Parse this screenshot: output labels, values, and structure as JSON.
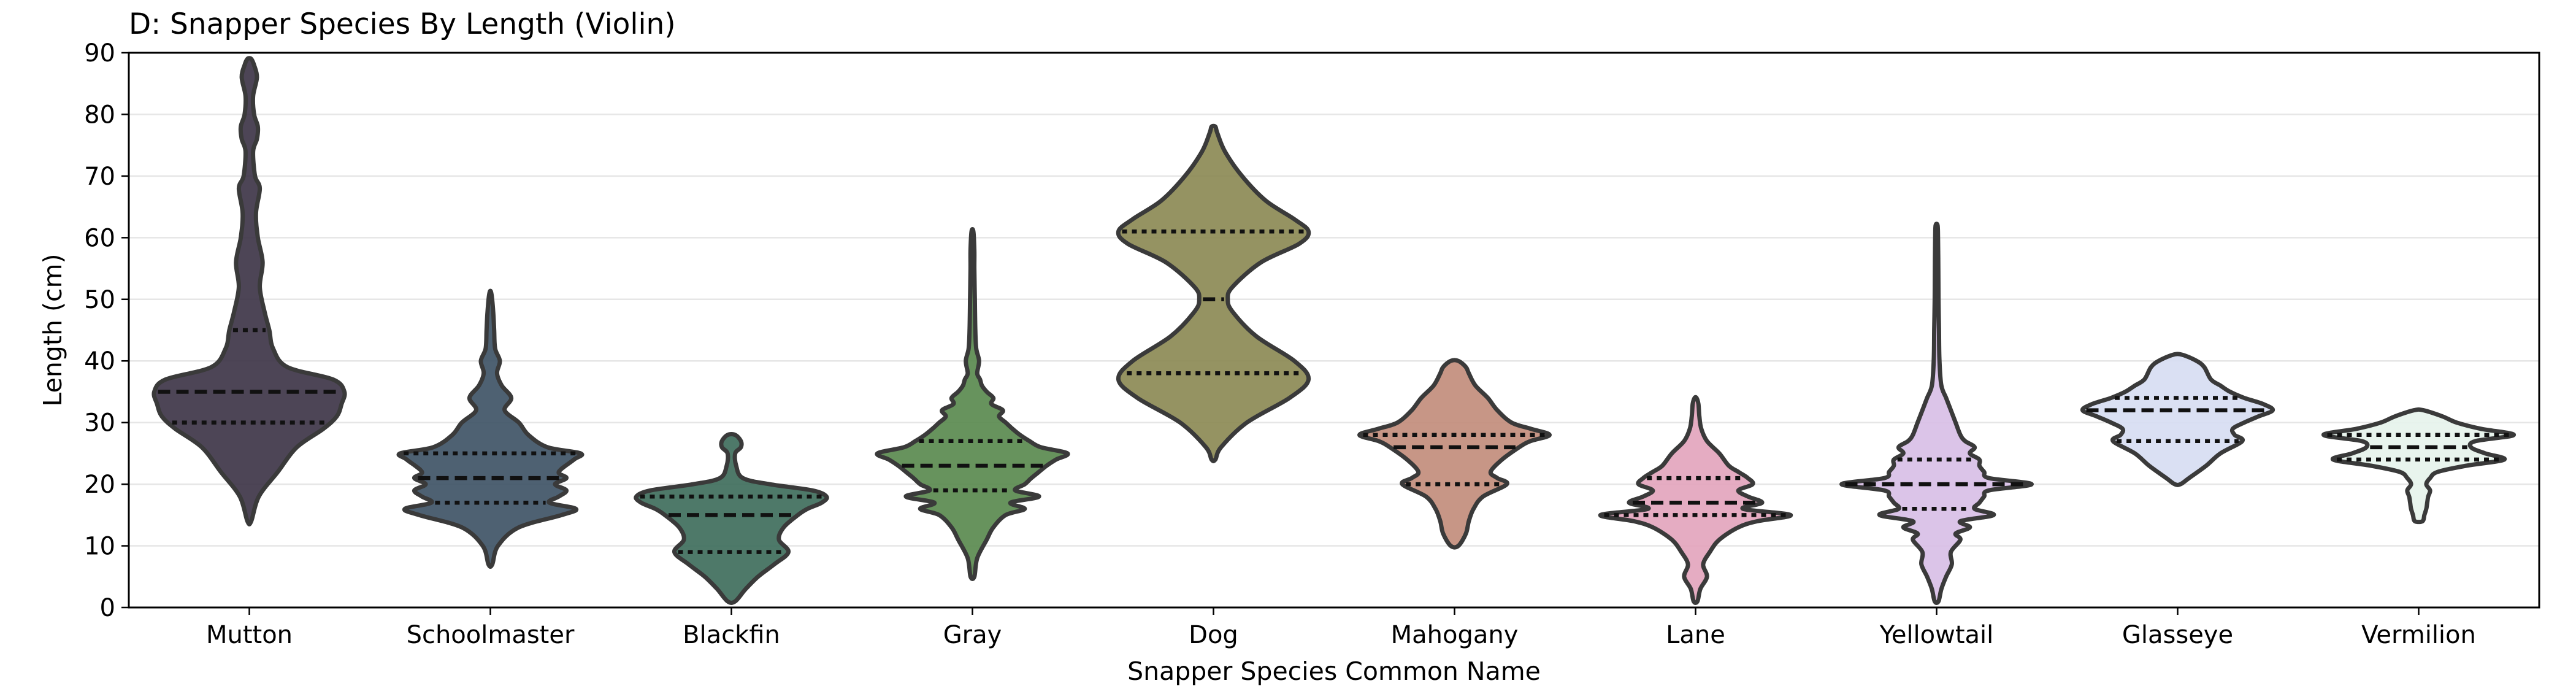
{
  "chart_data": {
    "type": "violin",
    "title": "D: Snapper Species By Length (Violin)",
    "xlabel": "Snapper Species Common Name",
    "ylabel": "Length (cm)",
    "ylim": [
      0,
      90
    ],
    "yticks": [
      0,
      10,
      20,
      30,
      40,
      50,
      60,
      70,
      80,
      90
    ],
    "grid": "horizontal",
    "inner": "quartile",
    "categories": [
      "Mutton",
      "Schoolmaster",
      "Blackfin",
      "Gray",
      "Dog",
      "Mahogany",
      "Lane",
      "Yellowtail",
      "Glasseye",
      "Vermilion"
    ],
    "colors": [
      "#3e3548",
      "#3f5466",
      "#3f6e5c",
      "#5a8a4f",
      "#8c8a55",
      "#c28d7c",
      "#e3a5bd",
      "#d8bfe6",
      "#d7ddf2",
      "#e6f3ec"
    ],
    "violins": [
      {
        "name": "Mutton",
        "min": 14,
        "max": 89,
        "q1": 30,
        "median": 35,
        "q3": 45,
        "profile": [
          [
            14,
            0.02
          ],
          [
            18,
            0.1
          ],
          [
            22,
            0.3
          ],
          [
            26,
            0.5
          ],
          [
            29,
            0.78
          ],
          [
            31,
            0.92
          ],
          [
            33,
            0.97
          ],
          [
            35,
            1.0
          ],
          [
            37,
            0.88
          ],
          [
            39,
            0.4
          ],
          [
            42,
            0.25
          ],
          [
            45,
            0.21
          ],
          [
            48,
            0.16
          ],
          [
            52,
            0.11
          ],
          [
            56,
            0.14
          ],
          [
            60,
            0.09
          ],
          [
            64,
            0.07
          ],
          [
            68,
            0.11
          ],
          [
            70,
            0.06
          ],
          [
            74,
            0.04
          ],
          [
            76,
            0.08
          ],
          [
            78,
            0.09
          ],
          [
            80,
            0.05
          ],
          [
            83,
            0.04
          ],
          [
            86,
            0.08
          ],
          [
            88,
            0.05
          ],
          [
            89,
            0.02
          ]
        ]
      },
      {
        "name": "Schoolmaster",
        "min": 7,
        "max": 51,
        "q1": 17,
        "median": 21,
        "q3": 25,
        "profile": [
          [
            7,
            0.02
          ],
          [
            10,
            0.08
          ],
          [
            13,
            0.3
          ],
          [
            15,
            0.75
          ],
          [
            16,
            0.9
          ],
          [
            17,
            0.62
          ],
          [
            18,
            0.72
          ],
          [
            19,
            0.8
          ],
          [
            20,
            0.68
          ],
          [
            21,
            0.8
          ],
          [
            22,
            0.72
          ],
          [
            24,
            0.88
          ],
          [
            25,
            0.95
          ],
          [
            26,
            0.6
          ],
          [
            28,
            0.4
          ],
          [
            30,
            0.3
          ],
          [
            32,
            0.15
          ],
          [
            34,
            0.22
          ],
          [
            36,
            0.12
          ],
          [
            38,
            0.07
          ],
          [
            40,
            0.1
          ],
          [
            42,
            0.05
          ],
          [
            45,
            0.04
          ],
          [
            48,
            0.03
          ],
          [
            51,
            0.01
          ]
        ]
      },
      {
        "name": "Blackfin",
        "min": 1,
        "max": 28,
        "q1": 9,
        "median": 15,
        "q3": 18,
        "profile": [
          [
            1,
            0.04
          ],
          [
            3,
            0.15
          ],
          [
            5,
            0.28
          ],
          [
            7,
            0.45
          ],
          [
            9,
            0.6
          ],
          [
            11,
            0.5
          ],
          [
            13,
            0.55
          ],
          [
            15,
            0.7
          ],
          [
            16,
            0.8
          ],
          [
            17,
            0.95
          ],
          [
            18,
            1.0
          ],
          [
            19,
            0.85
          ],
          [
            20,
            0.4
          ],
          [
            21,
            0.12
          ],
          [
            23,
            0.05
          ],
          [
            25,
            0.04
          ],
          [
            26,
            0.1
          ],
          [
            27,
            0.1
          ],
          [
            28,
            0.04
          ]
        ]
      },
      {
        "name": "Gray",
        "min": 5,
        "max": 61,
        "q1": 19,
        "median": 23,
        "q3": 27,
        "profile": [
          [
            5,
            0.02
          ],
          [
            8,
            0.05
          ],
          [
            11,
            0.15
          ],
          [
            13,
            0.22
          ],
          [
            15,
            0.35
          ],
          [
            16,
            0.55
          ],
          [
            17,
            0.4
          ],
          [
            18,
            0.7
          ],
          [
            19,
            0.45
          ],
          [
            20,
            0.55
          ],
          [
            21,
            0.62
          ],
          [
            22,
            0.7
          ],
          [
            23,
            0.78
          ],
          [
            24,
            0.88
          ],
          [
            25,
            1.0
          ],
          [
            26,
            0.72
          ],
          [
            27,
            0.6
          ],
          [
            28,
            0.5
          ],
          [
            29,
            0.42
          ],
          [
            30,
            0.35
          ],
          [
            31,
            0.28
          ],
          [
            32,
            0.32
          ],
          [
            33,
            0.2
          ],
          [
            34,
            0.22
          ],
          [
            35,
            0.15
          ],
          [
            36,
            0.1
          ],
          [
            37,
            0.08
          ],
          [
            38,
            0.05
          ],
          [
            40,
            0.07
          ],
          [
            42,
            0.04
          ],
          [
            45,
            0.03
          ],
          [
            50,
            0.025
          ],
          [
            55,
            0.02
          ],
          [
            58,
            0.02
          ],
          [
            61,
            0.01
          ]
        ]
      },
      {
        "name": "Dog",
        "min": 24,
        "max": 78,
        "q1": 38,
        "median": 50,
        "q3": 61,
        "profile": [
          [
            24,
            0.02
          ],
          [
            26,
            0.08
          ],
          [
            30,
            0.35
          ],
          [
            34,
            0.8
          ],
          [
            37,
            1.0
          ],
          [
            40,
            0.85
          ],
          [
            44,
            0.45
          ],
          [
            48,
            0.2
          ],
          [
            50,
            0.15
          ],
          [
            52,
            0.2
          ],
          [
            56,
            0.5
          ],
          [
            59,
            0.9
          ],
          [
            61,
            1.0
          ],
          [
            63,
            0.85
          ],
          [
            66,
            0.55
          ],
          [
            70,
            0.3
          ],
          [
            74,
            0.12
          ],
          [
            77,
            0.04
          ],
          [
            78,
            0.02
          ]
        ]
      },
      {
        "name": "Mahogany",
        "min": 10,
        "max": 40,
        "q1": 20,
        "median": 26,
        "q3": 28,
        "profile": [
          [
            10,
            0.04
          ],
          [
            12,
            0.12
          ],
          [
            14,
            0.15
          ],
          [
            16,
            0.2
          ],
          [
            18,
            0.3
          ],
          [
            20,
            0.55
          ],
          [
            21,
            0.45
          ],
          [
            22,
            0.38
          ],
          [
            24,
            0.5
          ],
          [
            26,
            0.68
          ],
          [
            27,
            0.8
          ],
          [
            28,
            1.0
          ],
          [
            29,
            0.8
          ],
          [
            30,
            0.6
          ],
          [
            32,
            0.45
          ],
          [
            34,
            0.35
          ],
          [
            36,
            0.22
          ],
          [
            38,
            0.15
          ],
          [
            39,
            0.12
          ],
          [
            40,
            0.04
          ]
        ]
      },
      {
        "name": "Lane",
        "min": 1,
        "max": 34,
        "q1": 15,
        "median": 17,
        "q3": 21,
        "profile": [
          [
            1,
            0.02
          ],
          [
            3,
            0.05
          ],
          [
            5,
            0.12
          ],
          [
            7,
            0.08
          ],
          [
            9,
            0.15
          ],
          [
            11,
            0.25
          ],
          [
            13,
            0.45
          ],
          [
            14,
            0.65
          ],
          [
            15,
            1.0
          ],
          [
            16,
            0.5
          ],
          [
            17,
            0.7
          ],
          [
            18,
            0.55
          ],
          [
            19,
            0.45
          ],
          [
            20,
            0.6
          ],
          [
            21,
            0.55
          ],
          [
            22,
            0.45
          ],
          [
            23,
            0.35
          ],
          [
            25,
            0.25
          ],
          [
            27,
            0.12
          ],
          [
            29,
            0.06
          ],
          [
            31,
            0.04
          ],
          [
            33,
            0.03
          ],
          [
            34,
            0.01
          ]
        ]
      },
      {
        "name": "Yellowtail",
        "min": 1,
        "max": 62,
        "q1": 16,
        "median": 20,
        "q3": 24,
        "profile": [
          [
            1,
            0.02
          ],
          [
            3,
            0.05
          ],
          [
            5,
            0.1
          ],
          [
            7,
            0.16
          ],
          [
            9,
            0.15
          ],
          [
            11,
            0.25
          ],
          [
            12,
            0.2
          ],
          [
            13,
            0.35
          ],
          [
            14,
            0.25
          ],
          [
            15,
            0.6
          ],
          [
            16,
            0.4
          ],
          [
            17,
            0.45
          ],
          [
            18,
            0.5
          ],
          [
            19,
            0.55
          ],
          [
            20,
            1.0
          ],
          [
            21,
            0.55
          ],
          [
            22,
            0.5
          ],
          [
            23,
            0.45
          ],
          [
            24,
            0.45
          ],
          [
            25,
            0.35
          ],
          [
            26,
            0.4
          ],
          [
            27,
            0.3
          ],
          [
            28,
            0.25
          ],
          [
            30,
            0.2
          ],
          [
            32,
            0.15
          ],
          [
            34,
            0.1
          ],
          [
            36,
            0.05
          ],
          [
            40,
            0.03
          ],
          [
            45,
            0.025
          ],
          [
            50,
            0.02
          ],
          [
            55,
            0.018
          ],
          [
            60,
            0.015
          ],
          [
            62,
            0.01
          ]
        ]
      },
      {
        "name": "Glasseye",
        "min": 20,
        "max": 41,
        "q1": 27,
        "median": 32,
        "q3": 34,
        "profile": [
          [
            20,
            0.03
          ],
          [
            21,
            0.12
          ],
          [
            23,
            0.3
          ],
          [
            25,
            0.45
          ],
          [
            27,
            0.68
          ],
          [
            28,
            0.6
          ],
          [
            29,
            0.58
          ],
          [
            30,
            0.7
          ],
          [
            31,
            0.85
          ],
          [
            32,
            1.0
          ],
          [
            33,
            0.9
          ],
          [
            34,
            0.7
          ],
          [
            35,
            0.55
          ],
          [
            36,
            0.45
          ],
          [
            37,
            0.35
          ],
          [
            39,
            0.28
          ],
          [
            40,
            0.2
          ],
          [
            41,
            0.05
          ]
        ]
      },
      {
        "name": "Vermilion",
        "min": 14,
        "max": 32,
        "q1": 24,
        "median": 26,
        "q3": 28,
        "profile": [
          [
            14,
            0.04
          ],
          [
            15,
            0.06
          ],
          [
            16,
            0.08
          ],
          [
            17,
            0.09
          ],
          [
            18,
            0.1
          ],
          [
            19,
            0.12
          ],
          [
            20,
            0.08
          ],
          [
            21,
            0.12
          ],
          [
            22,
            0.2
          ],
          [
            23,
            0.5
          ],
          [
            24,
            0.9
          ],
          [
            25,
            0.7
          ],
          [
            26,
            0.55
          ],
          [
            27,
            0.6
          ],
          [
            28,
            1.0
          ],
          [
            29,
            0.65
          ],
          [
            30,
            0.4
          ],
          [
            31,
            0.25
          ],
          [
            32,
            0.05
          ]
        ]
      }
    ]
  }
}
